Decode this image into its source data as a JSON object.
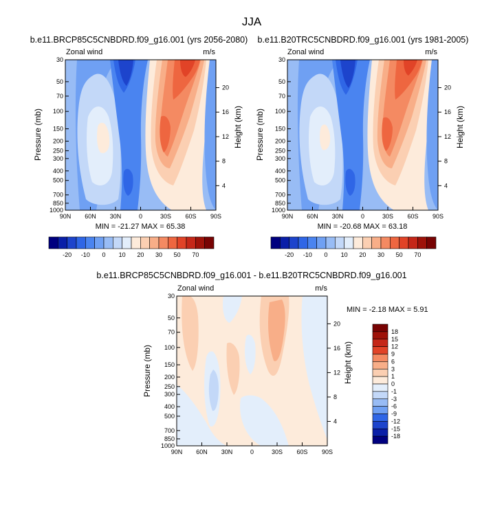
{
  "page": {
    "title": "JJA",
    "colors": {
      "main_scale": [
        "#00007f",
        "#0a1fa8",
        "#1d44cc",
        "#2f66e6",
        "#4a84f0",
        "#6fa0f3",
        "#98bcf5",
        "#c3d8f8",
        "#e3eefb",
        "#fdebdb",
        "#fbcfb2",
        "#f8ae88",
        "#f48a62",
        "#ee6640",
        "#e14327",
        "#c52718",
        "#9e1209",
        "#780303"
      ],
      "diff_scale": [
        "#00007f",
        "#0a1fa8",
        "#1d44cc",
        "#2f66e6",
        "#4a84f0",
        "#6fa0f3",
        "#98bcf5",
        "#c3d8f8",
        "#e3eefb",
        "#fdebdb",
        "#fbcfb2",
        "#f8ae88",
        "#f48a62",
        "#ee6640",
        "#e14327",
        "#c52718",
        "#9e1209",
        "#780303"
      ]
    }
  },
  "chart_data": [
    {
      "type": "heatmap",
      "title": "b.e11.BRCP85C5CNBDRD.f09_g16.001 (yrs 2056-2080)",
      "left_string": "Zonal wind",
      "right_string": "m/s",
      "ylabel": "Pressure (mb)",
      "ylabel_right": "Height (km)",
      "x_ticks": [
        "90N",
        "60N",
        "30N",
        "0",
        "30S",
        "60S",
        "90S"
      ],
      "y_ticks": [
        "30",
        "50",
        "70",
        "100",
        "150",
        "200",
        "250",
        "300",
        "400",
        "500",
        "700",
        "850",
        "1000"
      ],
      "y_ticks_right": [
        "20",
        "16",
        "12",
        "8",
        "4"
      ],
      "stats": "MIN = -21.27  MAX = 65.38",
      "min": -21.27,
      "max": 65.38,
      "colorbar_labels": [
        "-20",
        "-10",
        "0",
        "10",
        "20",
        "30",
        "50",
        "70"
      ]
    },
    {
      "type": "heatmap",
      "title": "b.e11.B20TRC5CNBDRD.f09_g16.001 (yrs 1981-2005)",
      "left_string": "Zonal wind",
      "right_string": "m/s",
      "ylabel": "Pressure (mb)",
      "ylabel_right": "Height (km)",
      "x_ticks": [
        "90N",
        "60N",
        "30N",
        "0",
        "30S",
        "60S",
        "90S"
      ],
      "y_ticks": [
        "30",
        "50",
        "70",
        "100",
        "150",
        "200",
        "250",
        "300",
        "400",
        "500",
        "700",
        "850",
        "1000"
      ],
      "y_ticks_right": [
        "20",
        "16",
        "12",
        "8",
        "4"
      ],
      "stats": "MIN = -20.68  MAX = 63.18",
      "min": -20.68,
      "max": 63.18,
      "colorbar_labels": [
        "-20",
        "-10",
        "0",
        "10",
        "20",
        "30",
        "50",
        "70"
      ]
    },
    {
      "type": "heatmap",
      "title": "b.e11.BRCP85C5CNBDRD.f09_g16.001 - b.e11.B20TRC5CNBDRD.f09_g16.001",
      "left_string": "Zonal wind",
      "right_string": "m/s",
      "ylabel": "Pressure (mb)",
      "ylabel_right": "Height (km)",
      "x_ticks": [
        "90N",
        "60N",
        "30N",
        "0",
        "30S",
        "60S",
        "90S"
      ],
      "y_ticks": [
        "30",
        "50",
        "70",
        "100",
        "150",
        "200",
        "250",
        "300",
        "400",
        "500",
        "700",
        "850",
        "1000"
      ],
      "y_ticks_right": [
        "20",
        "16",
        "12",
        "8",
        "4"
      ],
      "stats": "MIN = -2.18  MAX =   5.91",
      "min": -2.18,
      "max": 5.91,
      "colorbar_labels": [
        "18",
        "15",
        "12",
        "9",
        "6",
        "3",
        "1",
        "0",
        "-1",
        "-3",
        "-6",
        "-9",
        "-12",
        "-15",
        "-18"
      ]
    }
  ]
}
